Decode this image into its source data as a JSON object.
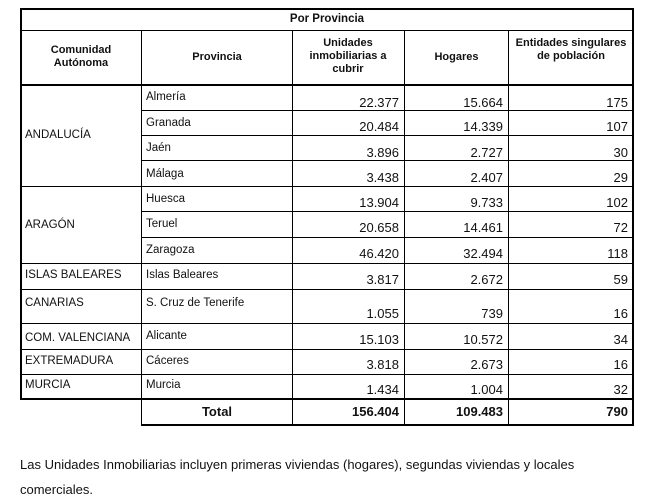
{
  "table": {
    "caption": "Por Provincia",
    "headers": {
      "comunidad": "Comunidad Autónoma",
      "provincia": "Provincia",
      "unidades": "Unidades inmobiliarias a cubrir",
      "hogares": "Hogares",
      "entidades": "Entidades singulares de población"
    },
    "communities": [
      "ANDALUCÍA",
      "ARAGÓN",
      "ISLAS BALEARES",
      "CANARIAS",
      "COM. VALENCIANA",
      "EXTREMADURA",
      "MURCIA"
    ],
    "rows": [
      {
        "provincia": "Almería",
        "unidades": "22.377",
        "hogares": "15.664",
        "entidades": "175"
      },
      {
        "provincia": "Granada",
        "unidades": "20.484",
        "hogares": "14.339",
        "entidades": "107"
      },
      {
        "provincia": "Jaén",
        "unidades": "3.896",
        "hogares": "2.727",
        "entidades": "30"
      },
      {
        "provincia": "Málaga",
        "unidades": "3.438",
        "hogares": "2.407",
        "entidades": "29"
      },
      {
        "provincia": "Huesca",
        "unidades": "13.904",
        "hogares": "9.733",
        "entidades": "102"
      },
      {
        "provincia": "Teruel",
        "unidades": "20.658",
        "hogares": "14.461",
        "entidades": "72"
      },
      {
        "provincia": "Zaragoza",
        "unidades": "46.420",
        "hogares": "32.494",
        "entidades": "118"
      },
      {
        "provincia": "Islas Baleares",
        "unidades": "3.817",
        "hogares": "2.672",
        "entidades": "59"
      },
      {
        "provincia": "S. Cruz de Tenerife",
        "unidades": "1.055",
        "hogares": "739",
        "entidades": "16"
      },
      {
        "provincia": "Alicante",
        "unidades": "15.103",
        "hogares": "10.572",
        "entidades": "34"
      },
      {
        "provincia": "Cáceres",
        "unidades": "3.818",
        "hogares": "2.673",
        "entidades": "16"
      },
      {
        "provincia": "Murcia",
        "unidades": "1.434",
        "hogares": "1.004",
        "entidades": "32"
      }
    ],
    "total": {
      "label": "Total",
      "unidades": "156.404",
      "hogares": "109.483",
      "entidades": "790"
    }
  },
  "note": {
    "line1": "Las Unidades Inmobiliarias incluyen primeras viviendas (hogares), segundas viviendas y locales",
    "line2": "comerciales."
  }
}
